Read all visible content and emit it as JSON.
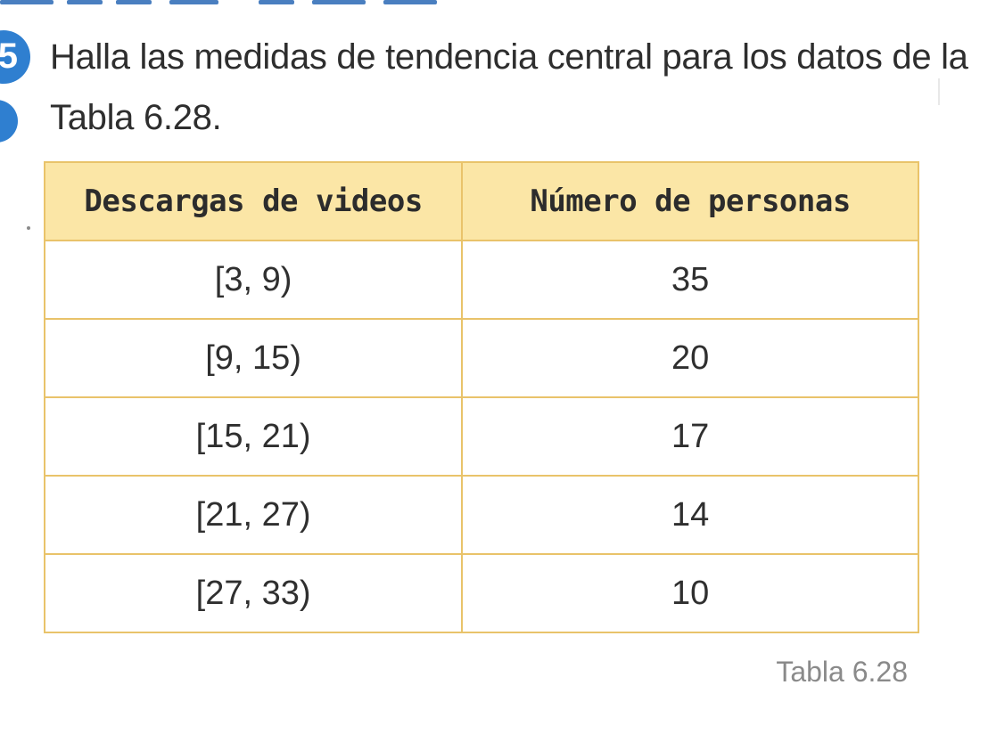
{
  "exercise": {
    "number": "5",
    "prompt": "Halla las medidas de tendencia central para los datos de la Tabla 6.28."
  },
  "table": {
    "headers": [
      "Descargas de videos",
      "Número de personas"
    ],
    "rows": [
      [
        "[3, 9)",
        "35"
      ],
      [
        "[9, 15)",
        "20"
      ],
      [
        "[15, 21)",
        "17"
      ],
      [
        "[21, 27)",
        "14"
      ],
      [
        "[27, 33)",
        "10"
      ]
    ],
    "caption": "Tabla 6.28"
  },
  "colors": {
    "accent": "#2f7fd0",
    "header_fill": "#fbe6a6",
    "table_border": "#e9c36a",
    "caption_text": "#8a8a8a"
  }
}
